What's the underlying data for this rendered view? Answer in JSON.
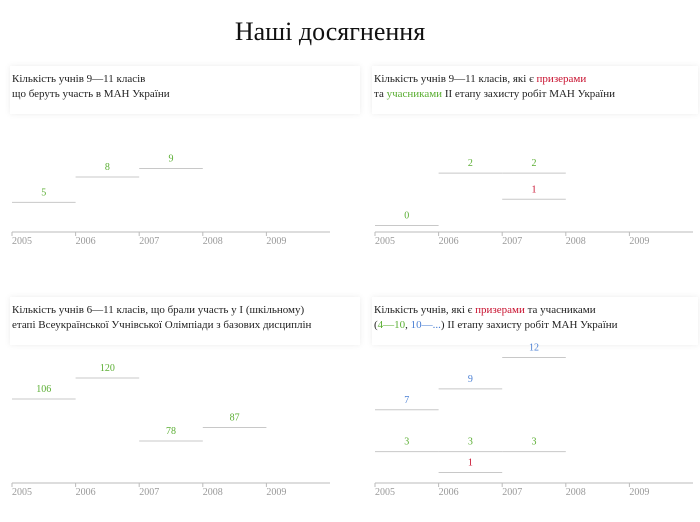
{
  "title": "Наші досягнення",
  "chart_data": [
    {
      "type": "step",
      "title": [
        "Кількість учнів 9—11 класів",
        "що беруть участь в МАН України"
      ],
      "xlim": [
        2005,
        2010
      ],
      "xticks": [
        2005,
        2006,
        2007,
        2008,
        2009
      ],
      "ylim": [
        1.5,
        10
      ],
      "series": [
        {
          "color": "#5aae32",
          "x": [
            2005,
            2006,
            2007
          ],
          "values": [
            5,
            8,
            9
          ]
        }
      ]
    },
    {
      "type": "step",
      "title": [
        "Кількість учнів 9—11 класів, які є ",
        "та ",
        " ІІ етапу захисту робіт МАН України"
      ],
      "xlim": [
        2005,
        2010
      ],
      "xticks": [
        2005,
        2006,
        2007,
        2008,
        2009
      ],
      "ylim": [
        -0.25,
        2.5
      ],
      "series": [
        {
          "name": "призерами",
          "color": "#c8102e",
          "x": [
            2007
          ],
          "values": [
            1
          ]
        },
        {
          "name": "учасниками",
          "color": "#5aae32",
          "x": [
            2005,
            2006,
            2007
          ],
          "values": [
            0,
            2,
            2
          ]
        }
      ]
    },
    {
      "type": "step",
      "title": [
        "Кількість учнів 6—11 класів, що брали участь у І (шкільному)",
        "етапі Всеукраїнської Учнівської Олімпіади з базових дисциплін"
      ],
      "xlim": [
        2005,
        2010
      ],
      "xticks": [
        2005,
        2006,
        2007,
        2008,
        2009
      ],
      "ylim": [
        50,
        130
      ],
      "series": [
        {
          "color": "#5aae32",
          "x": [
            2005,
            2006,
            2007,
            2008
          ],
          "values": [
            106,
            120,
            78,
            87
          ]
        }
      ]
    },
    {
      "type": "step",
      "title": [
        "Кількість учнів, які є ",
        " та учасниками",
        "(",
        ", ",
        ") ІІ етапу захисту робіт МАН України"
      ],
      "xlim": [
        2005,
        2010
      ],
      "xticks": [
        2005,
        2006,
        2007,
        2008,
        2009
      ],
      "ylim": [
        0,
        13
      ],
      "series": [
        {
          "name": "призерами",
          "color": "#c8102e",
          "x": [
            2006
          ],
          "values": [
            1
          ]
        },
        {
          "name": "4—10",
          "color": "#5aae32",
          "x": [
            2005,
            2006,
            2007
          ],
          "values": [
            3,
            3,
            3
          ]
        },
        {
          "name": "10—...",
          "color": "#4a7fd4",
          "x": [
            2005,
            2006,
            2007
          ],
          "values": [
            7,
            9,
            12
          ]
        }
      ]
    }
  ]
}
